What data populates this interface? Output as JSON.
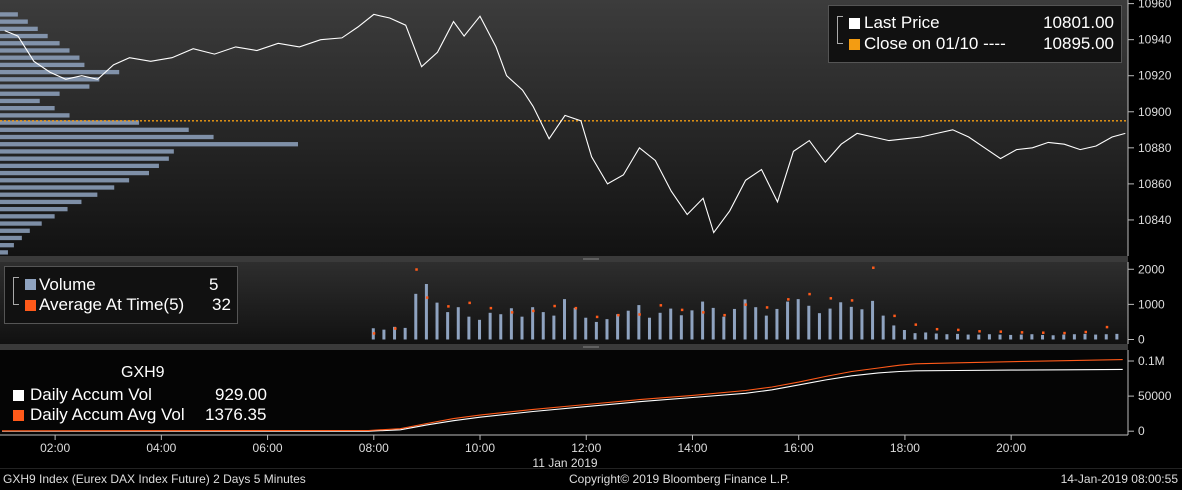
{
  "footer": {
    "left": "GXH9 Index (Eurex DAX Index Future) 2 Days 5 Minutes",
    "center": "Copyright© 2019 Bloomberg Finance L.P.",
    "right": "14-Jan-2019 08:00:55"
  },
  "colors": {
    "price_line": "#ffffff",
    "close_line": "#f39c12",
    "volume_bar": "#8fa3c0",
    "avg_dots": "#ff5a1a",
    "profile_bar": "#8fa3c0",
    "profile_poc": "#1fa8e0",
    "accum_vol": "#ffffff",
    "accum_avg": "#ff5a1a"
  },
  "chart_data": [
    {
      "type": "line",
      "panel": "price",
      "ylim": [
        10820,
        10962
      ],
      "yticks": [
        "10960",
        "10940",
        "10920",
        "10900",
        "10880",
        "10860",
        "10840"
      ],
      "ytick_values": [
        10960,
        10940,
        10920,
        10900,
        10880,
        10860,
        10840
      ],
      "close_reference": 10895,
      "legend": {
        "last_label": "Last Price",
        "last_value": "10801.00",
        "close_label": "Close on 01/10 ---- ",
        "close_value": "10895.00"
      },
      "series": [
        {
          "name": "Last Price",
          "x": [
            1.05,
            1.3,
            1.6,
            1.9,
            2.2,
            2.5,
            2.8,
            3.1,
            3.4,
            3.8,
            4.2,
            4.6,
            5.0,
            5.4,
            5.8,
            6.2,
            6.6,
            7.0,
            7.4,
            7.7,
            8.0,
            8.3,
            8.6,
            8.9,
            9.2,
            9.5,
            9.7,
            10.0,
            10.3,
            10.5,
            10.8,
            11.0,
            11.3,
            11.6,
            11.9,
            12.1,
            12.4,
            12.7,
            13.0,
            13.3,
            13.6,
            13.9,
            14.2,
            14.4,
            14.7,
            15.0,
            15.3,
            15.6,
            15.9,
            16.2,
            16.5,
            16.8,
            17.1,
            17.4,
            17.7,
            18.0,
            18.3,
            18.6,
            18.9,
            19.2,
            19.5,
            19.8,
            20.1,
            20.4,
            20.7,
            21.0,
            21.3,
            21.6,
            21.9,
            22.15
          ],
          "y": [
            10945,
            10942,
            10928,
            10922,
            10918,
            10920,
            10918,
            10926,
            10930,
            10928,
            10930,
            10935,
            10932,
            10936,
            10934,
            10938,
            10936,
            10940,
            10941,
            10947,
            10954,
            10952,
            10948,
            10925,
            10933,
            10950,
            10942,
            10953,
            10936,
            10920,
            10912,
            10903,
            10885,
            10898,
            10895,
            10875,
            10860,
            10865,
            10880,
            10873,
            10856,
            10843,
            10852,
            10833,
            10845,
            10862,
            10868,
            10850,
            10878,
            10884,
            10872,
            10882,
            10888,
            10886,
            10884,
            10885,
            10886,
            10888,
            10890,
            10886,
            10880,
            10874,
            10879,
            10880,
            10883,
            10882,
            10879,
            10881,
            10886,
            10888
          ]
        }
      ],
      "volume_profile": {
        "prices": [
          10822,
          10826,
          10830,
          10834,
          10838,
          10842,
          10846,
          10850,
          10854,
          10858,
          10862,
          10866,
          10870,
          10874,
          10878,
          10882,
          10886,
          10890,
          10894,
          10898,
          10902,
          10906,
          10910,
          10914,
          10918,
          10922,
          10926,
          10930,
          10934,
          10938,
          10942,
          10946,
          10950,
          10954
        ],
        "volumes": [
          8,
          14,
          22,
          30,
          42,
          55,
          68,
          82,
          98,
          115,
          130,
          150,
          160,
          170,
          175,
          300,
          215,
          190,
          140,
          70,
          55,
          40,
          60,
          90,
          100,
          120,
          85,
          80,
          70,
          60,
          48,
          38,
          28,
          18
        ],
        "poc_price": 10880
      }
    },
    {
      "type": "bar",
      "panel": "volume",
      "ylim": [
        -100,
        2150
      ],
      "yticks": [
        "2000",
        "1000",
        "0"
      ],
      "ytick_values": [
        2000,
        1000,
        0
      ],
      "legend": {
        "volume_label": "Volume",
        "volume_value": "5",
        "avg_label": "Average At Time(5)",
        "avg_value": "32"
      },
      "series": [
        {
          "name": "Volume",
          "x": [
            8.0,
            8.2,
            8.4,
            8.6,
            8.8,
            9.0,
            9.2,
            9.4,
            9.6,
            9.8,
            10.0,
            10.2,
            10.4,
            10.6,
            10.8,
            11.0,
            11.2,
            11.4,
            11.6,
            11.8,
            12.0,
            12.2,
            12.4,
            12.6,
            12.8,
            13.0,
            13.2,
            13.4,
            13.6,
            13.8,
            14.0,
            14.2,
            14.4,
            14.6,
            14.8,
            15.0,
            15.2,
            15.4,
            15.6,
            15.8,
            16.0,
            16.2,
            16.4,
            16.6,
            16.8,
            17.0,
            17.2,
            17.4,
            17.6,
            17.8,
            18.0,
            18.2,
            18.4,
            18.6,
            18.8,
            19.0,
            19.2,
            19.4,
            19.6,
            19.8,
            20.0,
            20.2,
            20.4,
            20.6,
            20.8,
            21.0,
            21.2,
            21.4,
            21.6,
            21.8,
            22.0
          ],
          "values": [
            320,
            280,
            360,
            330,
            1300,
            1580,
            1050,
            780,
            920,
            650,
            560,
            760,
            720,
            890,
            650,
            920,
            780,
            680,
            1150,
            900,
            620,
            500,
            580,
            720,
            820,
            980,
            620,
            760,
            880,
            690,
            830,
            1080,
            900,
            650,
            870,
            1140,
            920,
            680,
            870,
            1080,
            1150,
            960,
            750,
            880,
            1060,
            930,
            860,
            1100,
            680,
            400,
            270,
            180,
            200,
            170,
            150,
            160,
            140,
            140,
            150,
            140,
            130,
            140,
            150,
            130,
            120,
            140,
            150,
            160,
            140,
            150,
            160
          ]
        },
        {
          "name": "Average At Time(5)",
          "x": [
            8.0,
            8.4,
            8.8,
            9.0,
            9.4,
            9.8,
            10.2,
            10.6,
            11.0,
            11.4,
            11.8,
            12.2,
            12.6,
            13.0,
            13.4,
            13.8,
            14.2,
            14.6,
            15.0,
            15.4,
            15.8,
            16.2,
            16.6,
            17.0,
            17.4,
            17.8,
            18.2,
            18.6,
            19.0,
            19.4,
            19.8,
            20.2,
            20.6,
            21.0,
            21.4,
            21.8
          ],
          "values": [
            180,
            320,
            2000,
            1200,
            950,
            1050,
            900,
            780,
            820,
            960,
            900,
            650,
            700,
            720,
            980,
            850,
            780,
            700,
            1000,
            920,
            1150,
            1300,
            1180,
            1120,
            2050,
            680,
            430,
            300,
            280,
            240,
            230,
            210,
            200,
            190,
            220,
            360
          ]
        }
      ]
    },
    {
      "type": "line",
      "panel": "accum",
      "title": "GXH9",
      "ylim": [
        -4000,
        110000
      ],
      "yticks": [
        "0.1M",
        "50000",
        "0"
      ],
      "ytick_values": [
        100000,
        50000,
        0
      ],
      "xticks": [
        "02:00",
        "04:00",
        "06:00",
        "08:00",
        "10:00",
        "12:00",
        "14:00",
        "16:00",
        "18:00",
        "20:00"
      ],
      "xtick_values": [
        2,
        4,
        6,
        8,
        10,
        12,
        14,
        16,
        18,
        20
      ],
      "xlabel": "11 Jan 2019",
      "legend": {
        "accum_label": "Daily Accum Vol",
        "accum_value": "929.00",
        "avg_label": "Daily Accum Avg Vol",
        "avg_value": "1376.35"
      },
      "series": [
        {
          "name": "Daily Accum Vol",
          "x": [
            1.0,
            7.9,
            8.5,
            9.0,
            9.5,
            10.0,
            11.0,
            12.0,
            13.0,
            14.0,
            15.0,
            15.5,
            16.0,
            16.5,
            17.0,
            17.5,
            17.9,
            18.2,
            19.0,
            20.0,
            21.0,
            22.1
          ],
          "y": [
            0,
            0,
            2000,
            9000,
            15000,
            20000,
            28000,
            35000,
            42000,
            48000,
            54000,
            59000,
            66000,
            73000,
            79000,
            83000,
            85000,
            86000,
            86500,
            87000,
            87500,
            88000
          ]
        },
        {
          "name": "Daily Accum Avg Vol",
          "x": [
            1.0,
            7.9,
            8.5,
            9.0,
            9.5,
            10.0,
            11.0,
            12.0,
            13.0,
            14.0,
            15.0,
            15.5,
            16.0,
            16.5,
            17.0,
            17.5,
            17.9,
            18.2,
            19.0,
            20.0,
            21.0,
            22.1
          ],
          "y": [
            500,
            1000,
            3500,
            11000,
            18000,
            23000,
            31000,
            38000,
            45000,
            51000,
            58000,
            63000,
            70000,
            78000,
            85000,
            90000,
            94000,
            96000,
            97500,
            99000,
            100500,
            102000
          ]
        }
      ]
    }
  ]
}
